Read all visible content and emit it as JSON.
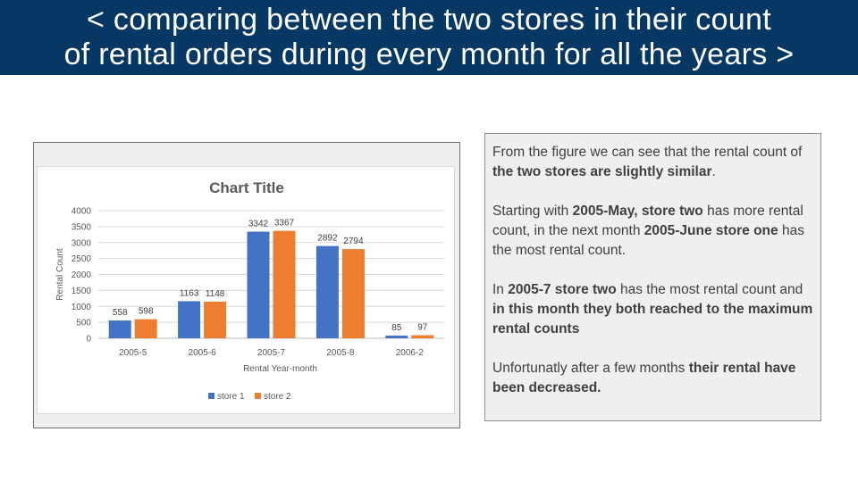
{
  "header": {
    "line1": "< comparing between the two stores in their count",
    "line2": "of rental orders during every month for all the years >"
  },
  "chart_data": {
    "type": "bar",
    "title": "Chart Title",
    "xlabel": "Rental Year-month",
    "ylabel": "Rental Count",
    "categories": [
      "2005-5",
      "2005-6",
      "2005-7",
      "2005-8",
      "2006-2"
    ],
    "series": [
      {
        "name": "store 1",
        "values": [
          558,
          1163,
          3342,
          2892,
          85
        ],
        "color": "#4472c4"
      },
      {
        "name": "store 2",
        "values": [
          598,
          1148,
          3367,
          2794,
          97
        ],
        "color": "#ed7d31"
      }
    ],
    "ylim": [
      0,
      4000
    ],
    "yticks": [
      "0",
      "500",
      "1000",
      "1500",
      "2000",
      "2500",
      "3000",
      "3500",
      "4000"
    ],
    "grid": true,
    "legend": "bottom"
  },
  "notes": {
    "p1": [
      {
        "t": "From the figure we can see that the rental count of ",
        "b": false
      },
      {
        "t": "the two stores are slightly similar",
        "b": true
      },
      {
        "t": ".",
        "b": false
      }
    ],
    "p2": [
      {
        "t": "Starting with ",
        "b": false
      },
      {
        "t": "2005-May, store two",
        "b": true
      },
      {
        "t": " has more rental count, in the next month ",
        "b": false
      },
      {
        "t": "2005-June store one",
        "b": true
      },
      {
        "t": " has the most rental count.",
        "b": false
      }
    ],
    "p3": [
      {
        "t": "In ",
        "b": false
      },
      {
        "t": "2005-7 store two",
        "b": true
      },
      {
        "t": " has the most rental count and ",
        "b": false
      },
      {
        "t": "in this month they both reached to the maximum rental counts",
        "b": true
      }
    ],
    "p4": [
      {
        "t": "Unfortunatly after a few months ",
        "b": false
      },
      {
        "t": "their rental have been decreased.",
        "b": true
      }
    ]
  }
}
